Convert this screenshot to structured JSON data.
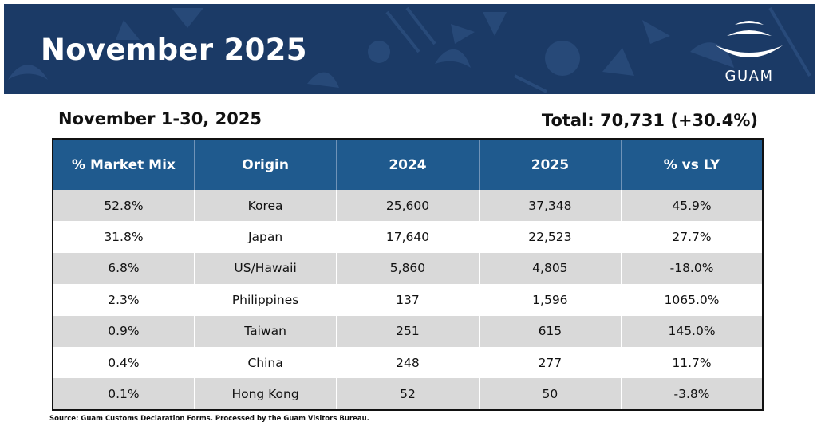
{
  "banner": {
    "title": "November 2025"
  },
  "logo": {
    "text": "GUAM"
  },
  "report": {
    "date_range": "November 1-30, 2025",
    "total": "Total: 70,731 (+30.4%)"
  },
  "table": {
    "headers": [
      "% Market Mix",
      "Origin",
      "2024",
      "2025",
      "% vs LY"
    ],
    "rows": [
      {
        "mix": "52.8%",
        "origin": "Korea",
        "y2024": "25,600",
        "y2025": "37,348",
        "vs_ly": "45.9%",
        "negative": false
      },
      {
        "mix": "31.8%",
        "origin": "Japan",
        "y2024": "17,640",
        "y2025": "22,523",
        "vs_ly": "27.7%",
        "negative": false
      },
      {
        "mix": "6.8%",
        "origin": "US/Hawaii",
        "y2024": "5,860",
        "y2025": "4,805",
        "vs_ly": "-18.0%",
        "negative": true
      },
      {
        "mix": "2.3%",
        "origin": "Philippines",
        "y2024": "137",
        "y2025": "1,596",
        "vs_ly": "1065.0%",
        "negative": false
      },
      {
        "mix": "0.9%",
        "origin": "Taiwan",
        "y2024": "251",
        "y2025": "615",
        "vs_ly": "145.0%",
        "negative": false
      },
      {
        "mix": "0.4%",
        "origin": "China",
        "y2024": "248",
        "y2025": "277",
        "vs_ly": "11.7%",
        "negative": false
      },
      {
        "mix": "0.1%",
        "origin": "Hong Kong",
        "y2024": "52",
        "y2025": "50",
        "vs_ly": "-3.8%",
        "negative": true
      }
    ]
  },
  "source": "Source: Guam Customs Declaration Forms. Processed by the Guam Visitors Bureau.",
  "colors": {
    "banner_bg": "#1b3a66",
    "header_bg": "#1f5a8e",
    "row_shade": "#d9d9d9",
    "negative": "#c0151d"
  }
}
